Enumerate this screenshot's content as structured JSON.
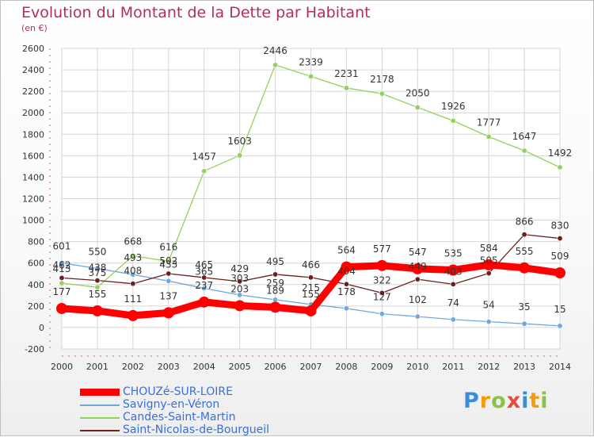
{
  "chart_data": {
    "type": "line",
    "title": "Evolution du Montant de la Dette par Habitant",
    "subtitle": "(en €)",
    "x": [
      "2000",
      "2001",
      "2002",
      "2003",
      "2004",
      "2005",
      "2006",
      "2007",
      "2008",
      "2009",
      "2010",
      "2011",
      "2012",
      "2013",
      "2014"
    ],
    "ylim": [
      -200,
      2600
    ],
    "yticks": [
      -200,
      0,
      200,
      400,
      600,
      800,
      1000,
      1200,
      1400,
      1600,
      1800,
      2000,
      2200,
      2400,
      2600
    ],
    "grid": true,
    "legend": "bottom-left",
    "series": [
      {
        "name": "CHOUZé-SUR-LOIRE",
        "color": "#ff0000",
        "values": [
          177,
          155,
          111,
          137,
          237,
          203,
          189,
          155,
          564,
          577,
          547,
          535,
          584,
          555,
          509
        ]
      },
      {
        "name": "Savigny-en-Véron",
        "color": "#6fa8dc",
        "values": [
          601,
          550,
          493,
          433,
          365,
          303,
          259,
          215,
          178,
          127,
          102,
          74,
          54,
          35,
          15
        ]
      },
      {
        "name": "Candes-Saint-Martin",
        "color": "#93d15c",
        "values": [
          413,
          375,
          668,
          616,
          1457,
          1603,
          2446,
          2339,
          2231,
          2178,
          2050,
          1926,
          1777,
          1647,
          1492
        ]
      },
      {
        "name": "Saint-Nicolas-de-Bourgueil",
        "color": "#6b1f1f",
        "values": [
          462,
          438,
          408,
          502,
          465,
          429,
          495,
          466,
          404,
          322,
          449,
          403,
          505,
          866,
          830
        ]
      }
    ]
  },
  "logo": {
    "letters": [
      "P",
      "r",
      "o",
      "x",
      "i",
      "t",
      "i"
    ],
    "colors": [
      "#3a8ed8",
      "#f39c12",
      "#8bc34a",
      "#e74c3c",
      "#3a8ed8",
      "#f39c12",
      "#8bc34a"
    ]
  }
}
